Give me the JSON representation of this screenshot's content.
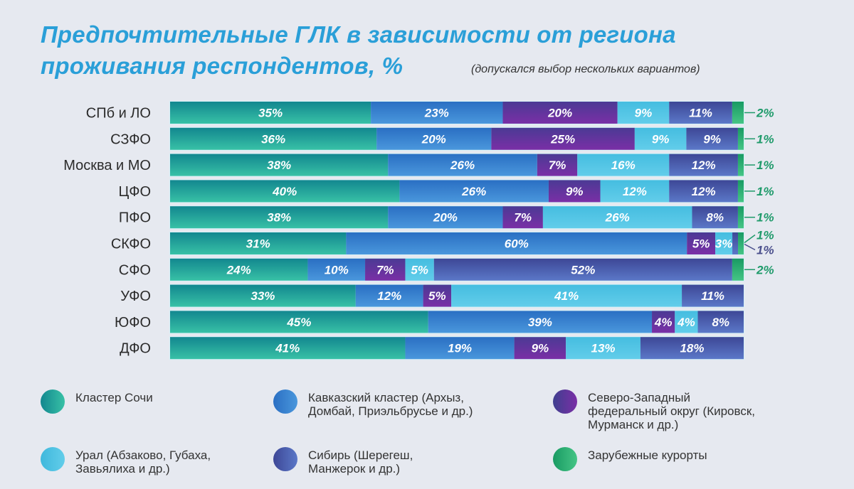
{
  "title": "Предпочтительные ГЛК в зависимости от региона проживания респондентов, %",
  "title_line1": "Предпочтительные ГЛК в зависимости от региона",
  "title_line2": "проживания респондентов, %",
  "subtitle": "(допускался выбор нескольких вариантов)",
  "chart_data": {
    "type": "bar",
    "orientation": "horizontal",
    "stacked": true,
    "title": "Предпочтительные ГЛК в зависимости от региона проживания респондентов, %",
    "subtitle": "(допускался выбор нескольких вариантов)",
    "xlabel": "",
    "ylabel": "",
    "grid": false,
    "legend_position": "bottom",
    "categories": [
      "СПб и ЛО",
      "СЗФО",
      "Москва и МО",
      "ЦФО",
      "ПФО",
      "СКФО",
      "СФО",
      "УФО",
      "ЮФО",
      "ДФО"
    ],
    "series": [
      {
        "name": "Кластер Сочи",
        "color": "#1f9e9a",
        "values": [
          35,
          36,
          38,
          40,
          38,
          31,
          24,
          33,
          45,
          41
        ]
      },
      {
        "name": "Кавказский кластер (Архыз, Домбай, Приэльбрусье и др.)",
        "color": "#3379c9",
        "values": [
          23,
          20,
          26,
          26,
          20,
          60,
          10,
          12,
          39,
          19
        ]
      },
      {
        "name": "Северо-Западный федеральный округ (Кировск, Мурманск и др.)",
        "color": "#6a35a0",
        "values": [
          20,
          25,
          7,
          9,
          7,
          5,
          7,
          5,
          4,
          9
        ]
      },
      {
        "name": "Урал (Абзаково, Губаха, Завьялиха и др.)",
        "color": "#4ec3e3",
        "values": [
          9,
          9,
          16,
          12,
          26,
          3,
          5,
          41,
          4,
          13
        ]
      },
      {
        "name": "Сибирь (Шерегеш, Манжерок и др.)",
        "color": "#4a58a8",
        "values": [
          11,
          9,
          12,
          12,
          8,
          1,
          52,
          11,
          8,
          18
        ]
      },
      {
        "name": "Зарубежные курорты",
        "color": "#27b277",
        "values": [
          2,
          1,
          1,
          1,
          1,
          1,
          2,
          0,
          0,
          0
        ]
      }
    ],
    "outside_labels": [
      {
        "category": "СПб и ЛО",
        "series": "Зарубежные курорты",
        "text": "2%"
      },
      {
        "category": "СЗФО",
        "series": "Зарубежные курорты",
        "text": "1%"
      },
      {
        "category": "Москва и МО",
        "series": "Зарубежные курорты",
        "text": "1%"
      },
      {
        "category": "ЦФО",
        "series": "Зарубежные курорты",
        "text": "1%"
      },
      {
        "category": "ПФО",
        "series": "Зарубежные курорты",
        "text": "1%"
      },
      {
        "category": "СКФО",
        "series": "Зарубежные курорты",
        "text": "1%"
      },
      {
        "category": "СКФО",
        "series": "Сибирь (Шерегеш, Манжерок и др.)",
        "text": "1%"
      },
      {
        "category": "СФО",
        "series": "Зарубежные курорты",
        "text": "2%"
      }
    ]
  },
  "legend": [
    {
      "label": "Кластер Сочи",
      "color_a": "#12878f",
      "color_b": "#38c1a6"
    },
    {
      "label": "Кавказский кластер (Архыз,\nДомбай, Приэльбрусье и др.)",
      "color_a": "#2a6fc3",
      "color_b": "#4a97dc"
    },
    {
      "label": "Северо-Западный\nфедеральный округ (Кировск,\nМурманск и др.)",
      "color_a": "#3f3f8f",
      "color_b": "#7a2fa6"
    },
    {
      "label": "Урал (Абзаково, Губаха,\nЗавьялиха и др.)",
      "color_a": "#3fb8dc",
      "color_b": "#62cdea"
    },
    {
      "label": "Сибирь (Шерегеш,\nМанжерок и др.)",
      "color_a": "#3d4796",
      "color_b": "#5b78c8"
    },
    {
      "label": "Зарубежные курорты",
      "color_a": "#199a63",
      "color_b": "#45c585"
    }
  ],
  "colors": {
    "title": "#2a9fd8",
    "label_text": "#ffffff",
    "category_text": "#2b2b2b",
    "outside_green": "#1e9a6a",
    "outside_slate": "#4a4f8c",
    "background": "#e6e9f0"
  }
}
